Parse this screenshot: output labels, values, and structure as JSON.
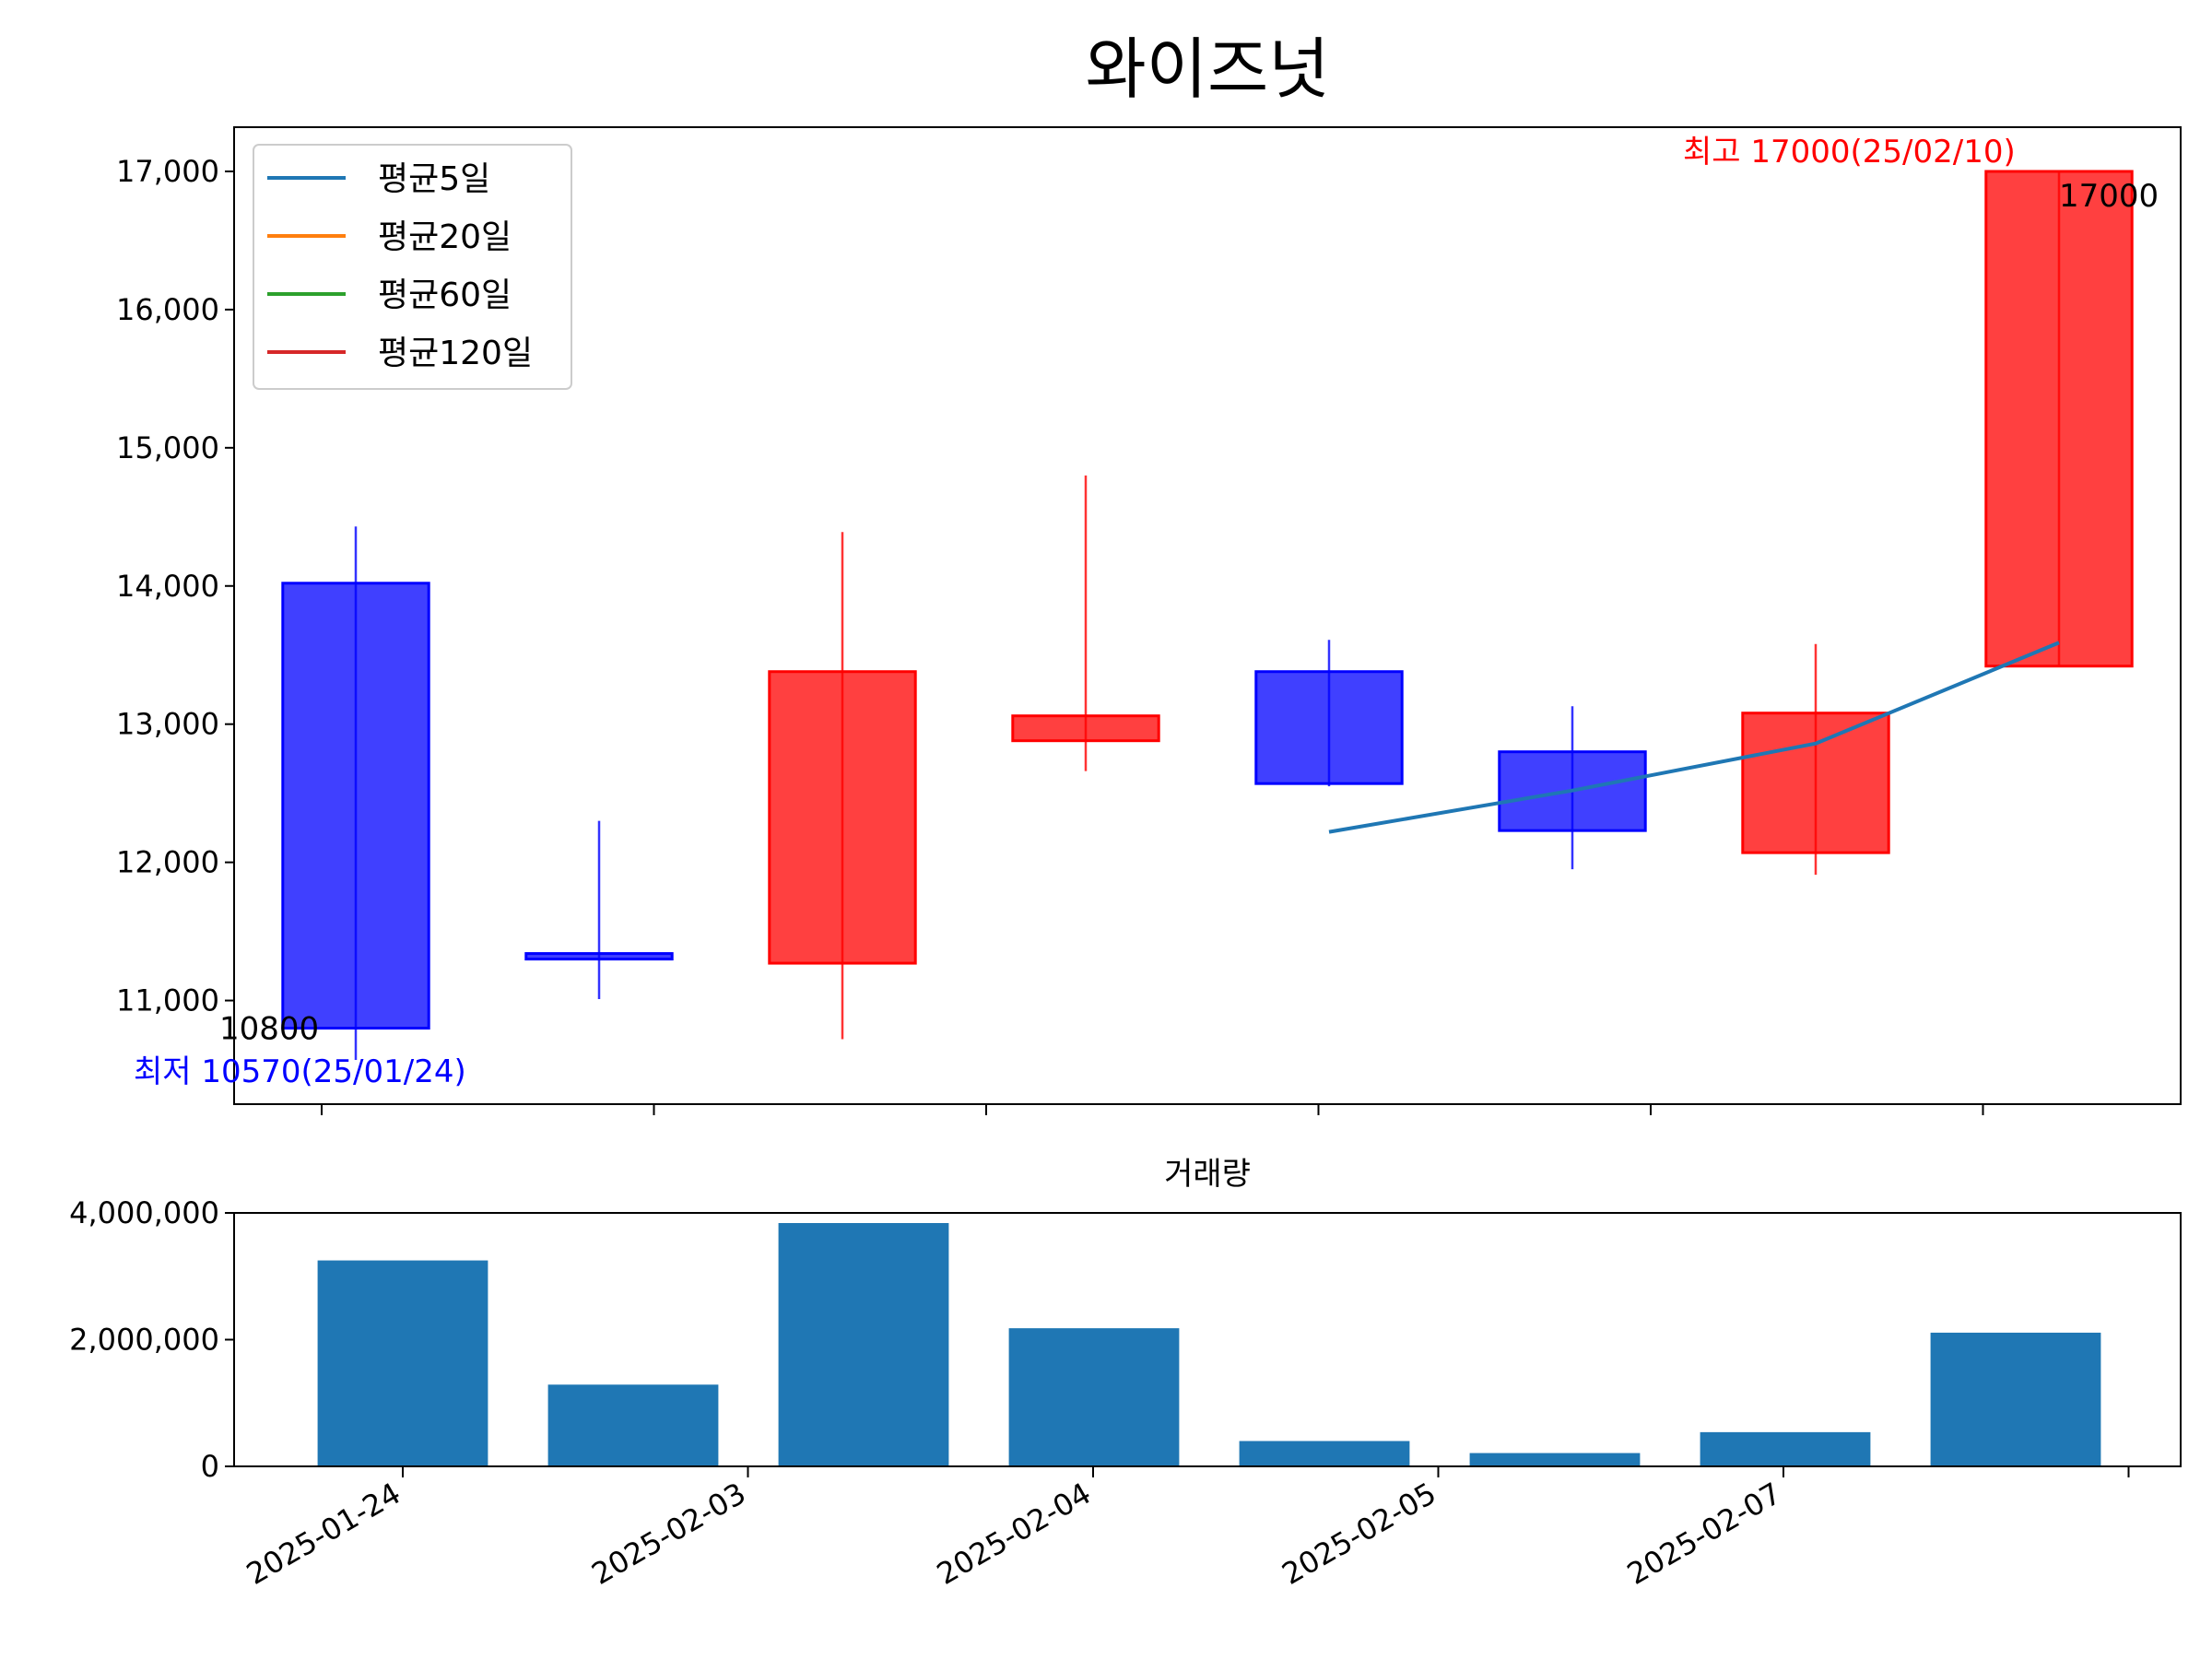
{
  "colors": {
    "up": "#ff0000",
    "down": "#0000ff",
    "ma5": "#1f77b4",
    "ma20": "#ff7f0e",
    "ma60": "#2ca02c",
    "ma120": "#d62728",
    "volume": "#1f77b4"
  },
  "chart_data": [
    {
      "type": "candlestick",
      "title": "와이즈넛",
      "ylim": [
        10250,
        17320
      ],
      "yticks": [
        11000,
        12000,
        13000,
        14000,
        15000,
        16000,
        17000
      ],
      "ytick_labels": [
        "11,000",
        "12,000",
        "13,000",
        "14,000",
        "15,000",
        "16,000",
        "17,000"
      ],
      "legend": {
        "placement": "top-left",
        "entries": [
          {
            "label": "평균5일",
            "color": "#1f77b4"
          },
          {
            "label": "평균20일",
            "color": "#ff7f0e"
          },
          {
            "label": "평균60일",
            "color": "#2ca02c"
          },
          {
            "label": "평균120일",
            "color": "#d62728"
          }
        ]
      },
      "candles": [
        {
          "open": 14020,
          "high": 14430,
          "low": 10570,
          "close": 10800
        },
        {
          "open": 11340,
          "high": 12300,
          "low": 11010,
          "close": 11310
        },
        {
          "open": 11270,
          "high": 14390,
          "low": 10720,
          "close": 13380
        },
        {
          "open": 12880,
          "high": 14800,
          "low": 12660,
          "close": 13060
        },
        {
          "open": 13380,
          "high": 13610,
          "low": 12550,
          "close": 12570
        },
        {
          "open": 12800,
          "high": 13130,
          "low": 11950,
          "close": 12230
        },
        {
          "open": 12070,
          "high": 13580,
          "low": 11910,
          "close": 13080
        },
        {
          "open": 13420,
          "high": 17000,
          "low": 13420,
          "close": 17000
        }
      ],
      "ma5": [
        null,
        null,
        null,
        null,
        12220,
        12520,
        12860,
        13590
      ],
      "annotations": {
        "min_value": "10800",
        "max_value": "17000",
        "min_label": "최저 10570(25/01/24)",
        "max_label": "최고 17000(25/02/10)"
      },
      "xtick_count": 6
    },
    {
      "type": "bar",
      "title": "거래량",
      "ylim": [
        0,
        4000000
      ],
      "yticks": [
        0,
        2000000,
        4000000
      ],
      "ytick_labels": [
        "0",
        "2,000,000",
        "4,000,000"
      ],
      "values": [
        3250000,
        1290000,
        3840000,
        2180000,
        400000,
        210000,
        540000,
        2110000
      ],
      "xtick_labels": [
        "2025-01-24",
        "2025-02-03",
        "2025-02-04",
        "2025-02-05",
        "2025-02-07",
        ""
      ]
    }
  ]
}
